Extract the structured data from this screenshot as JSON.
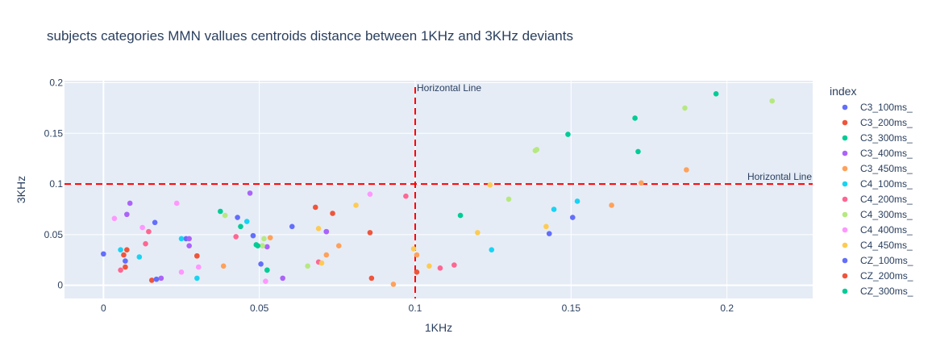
{
  "chart_data": {
    "type": "scatter",
    "title": "subjects categories MMN vallues centroids distance between 1KHz and 3KHz deviants",
    "xlabel": "1KHz",
    "ylabel": "3KHz",
    "xlim": [
      -0.0125,
      0.2275
    ],
    "ylim": [
      -0.013,
      0.202
    ],
    "xticks": [
      0,
      0.05,
      0.1,
      0.15,
      0.2
    ],
    "xtick_labels": [
      "0",
      "0.05",
      "0.1",
      "0.15",
      "0.2"
    ],
    "yticks": [
      0,
      0.05,
      0.1,
      0.15,
      0.2
    ],
    "ytick_labels": [
      "0",
      "0.05",
      "0.1",
      "0.15",
      "0.2"
    ],
    "grid": true,
    "legend": {
      "title": "index",
      "position": "right"
    },
    "reference_lines": [
      {
        "orientation": "vertical",
        "x": 0.1,
        "label": "Horizontal Line",
        "color": "#ff0000",
        "dash": "dash"
      },
      {
        "orientation": "horizontal",
        "y": 0.1,
        "label": "Horizontal Line",
        "color": "#ff0000",
        "dash": "dash"
      }
    ],
    "series": [
      {
        "name": "C3_100ms_",
        "color": "#636efa",
        "points": [
          [
            0.0,
            0.031
          ],
          [
            0.0165,
            0.062
          ],
          [
            0.0265,
            0.046
          ],
          [
            0.043,
            0.067
          ],
          [
            0.048,
            0.049
          ],
          [
            0.0605,
            0.058
          ],
          [
            0.0715,
            0.053
          ],
          [
            0.143,
            0.051
          ],
          [
            0.1505,
            0.067
          ]
        ]
      },
      {
        "name": "C3_200ms_",
        "color": "#ef553b",
        "points": [
          [
            0.0065,
            0.03
          ],
          [
            0.0075,
            0.035
          ],
          [
            0.0155,
            0.005
          ],
          [
            0.03,
            0.029
          ],
          [
            0.068,
            0.077
          ],
          [
            0.0735,
            0.071
          ],
          [
            0.0855,
            0.052
          ],
          [
            0.086,
            0.007
          ],
          [
            0.1005,
            0.013
          ]
        ]
      },
      {
        "name": "C3_300ms_",
        "color": "#00cc96",
        "points": [
          [
            0.0375,
            0.073
          ],
          [
            0.044,
            0.058
          ],
          [
            0.049,
            0.04
          ],
          [
            0.0525,
            0.015
          ],
          [
            0.1145,
            0.069
          ],
          [
            0.149,
            0.149
          ],
          [
            0.1705,
            0.165
          ],
          [
            0.1715,
            0.132
          ],
          [
            0.1965,
            0.189
          ]
        ]
      },
      {
        "name": "C3_400ms_",
        "color": "#ab63fa",
        "points": [
          [
            0.0085,
            0.081
          ],
          [
            0.0075,
            0.07
          ],
          [
            0.0185,
            0.007
          ],
          [
            0.0275,
            0.039
          ],
          [
            0.047,
            0.091
          ],
          [
            0.0525,
            0.038
          ],
          [
            0.0575,
            0.007
          ],
          [
            0.0715,
            0.053
          ],
          [
            0.0275,
            0.046
          ]
        ]
      },
      {
        "name": "C3_450ms_",
        "color": "#ffa15a",
        "points": [
          [
            0.0385,
            0.019
          ],
          [
            0.0535,
            0.047
          ],
          [
            0.0715,
            0.03
          ],
          [
            0.0755,
            0.039
          ],
          [
            0.093,
            0.001
          ],
          [
            0.1005,
            0.03
          ],
          [
            0.163,
            0.079
          ],
          [
            0.187,
            0.114
          ],
          [
            0.1725,
            0.101
          ]
        ]
      },
      {
        "name": "C4_100ms_",
        "color": "#19d3f3",
        "points": [
          [
            0.0055,
            0.035
          ],
          [
            0.0115,
            0.028
          ],
          [
            0.025,
            0.046
          ],
          [
            0.03,
            0.007
          ],
          [
            0.046,
            0.063
          ],
          [
            0.1245,
            0.035
          ],
          [
            0.1445,
            0.075
          ],
          [
            0.152,
            0.083
          ]
        ]
      },
      {
        "name": "C4_200ms_",
        "color": "#ff6692",
        "points": [
          [
            0.0055,
            0.015
          ],
          [
            0.0135,
            0.041
          ],
          [
            0.0145,
            0.053
          ],
          [
            0.0425,
            0.048
          ],
          [
            0.069,
            0.023
          ],
          [
            0.097,
            0.088
          ],
          [
            0.108,
            0.017
          ],
          [
            0.1125,
            0.02
          ]
        ]
      },
      {
        "name": "C4_300ms_",
        "color": "#b6e880",
        "points": [
          [
            0.039,
            0.069
          ],
          [
            0.0515,
            0.046
          ],
          [
            0.051,
            0.039
          ],
          [
            0.0655,
            0.019
          ],
          [
            0.13,
            0.085
          ],
          [
            0.1385,
            0.133
          ],
          [
            0.139,
            0.134
          ],
          [
            0.1865,
            0.175
          ],
          [
            0.2145,
            0.182
          ]
        ]
      },
      {
        "name": "C4_400ms_",
        "color": "#ff97ff",
        "points": [
          [
            0.0035,
            0.066
          ],
          [
            0.0125,
            0.057
          ],
          [
            0.0235,
            0.081
          ],
          [
            0.025,
            0.013
          ],
          [
            0.0305,
            0.018
          ],
          [
            0.052,
            0.004
          ],
          [
            0.0855,
            0.09
          ]
        ]
      },
      {
        "name": "C4_450ms_",
        "color": "#fecb52",
        "points": [
          [
            0.069,
            0.056
          ],
          [
            0.07,
            0.022
          ],
          [
            0.081,
            0.079
          ],
          [
            0.0995,
            0.036
          ],
          [
            0.1045,
            0.019
          ],
          [
            0.12,
            0.052
          ],
          [
            0.124,
            0.099
          ],
          [
            0.142,
            0.058
          ]
        ]
      },
      {
        "name": "CZ_100ms_",
        "color": "#636efa",
        "points": [
          [
            0.007,
            0.024
          ],
          [
            0.017,
            0.006
          ],
          [
            0.0505,
            0.021
          ]
        ]
      },
      {
        "name": "CZ_200ms_",
        "color": "#ef553b",
        "points": [
          [
            0.007,
            0.018
          ],
          [
            0.03,
            0.029
          ]
        ]
      },
      {
        "name": "CZ_300ms_",
        "color": "#00cc96",
        "points": [
          [
            0.0495,
            0.039
          ],
          [
            0.0525,
            0.015
          ]
        ]
      }
    ]
  }
}
